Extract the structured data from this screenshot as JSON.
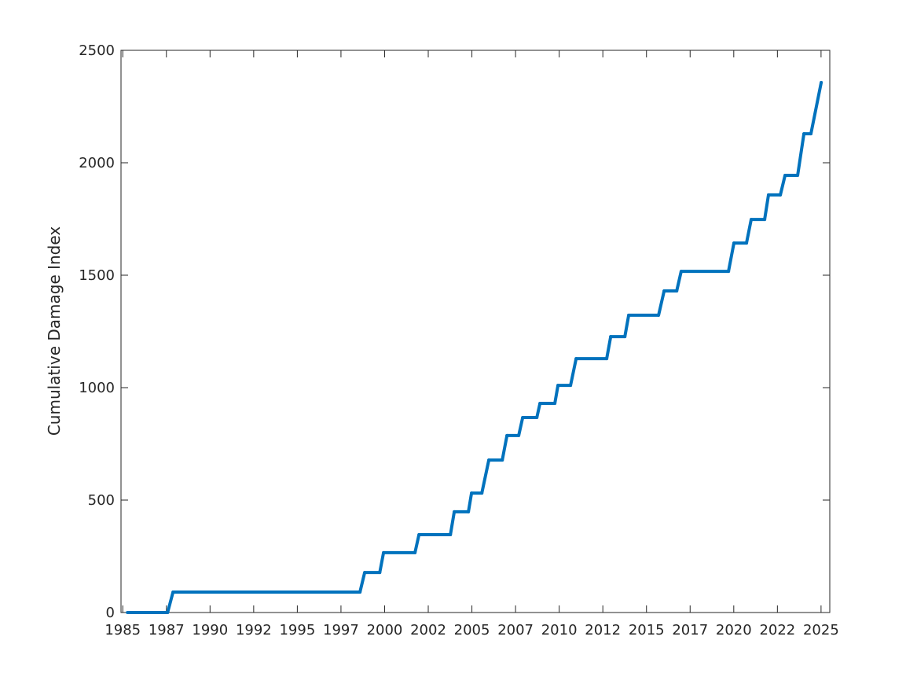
{
  "chart_data": {
    "type": "line",
    "title": "",
    "xlabel": "",
    "ylabel": "Cumulative Damage Index",
    "xlim": [
      1984.9,
      2025.5
    ],
    "ylim": [
      0,
      2500
    ],
    "grid": false,
    "line_color": "#0072BD",
    "x_ticks": [
      1985,
      1987.5,
      1990,
      1992.5,
      1995,
      1997.5,
      2000,
      2002.5,
      2005,
      2007.5,
      2010,
      2012.5,
      2015,
      2017.5,
      2020,
      2022.5,
      2025
    ],
    "x_tick_labels": [
      "1985",
      "1987",
      "1990",
      "1992",
      "1995",
      "1997",
      "2000",
      "2002",
      "2005",
      "2007",
      "2010",
      "2012",
      "2015",
      "2017",
      "2020",
      "2022",
      "2025"
    ],
    "y_ticks": [
      0,
      500,
      1000,
      1500,
      2000,
      2500
    ],
    "y_tick_labels": [
      "0",
      "500",
      "1000",
      "1500",
      "2000",
      "2500"
    ],
    "series": [
      {
        "x": [
          1985.27,
          1987.57,
          1987.88,
          1998.59,
          1998.86,
          1999.72,
          1999.94,
          2001.74,
          2001.97,
          2003.77,
          2003.99,
          2004.8,
          2004.98,
          2005.57,
          2005.97,
          2006.74,
          2007.01,
          2007.68,
          2007.91,
          2008.72,
          2008.9,
          2009.75,
          2009.93,
          2010.65,
          2010.97,
          2012.72,
          2012.95,
          2013.76,
          2013.98,
          2015.69,
          2016.01,
          2016.73,
          2016.99,
          2019.7,
          2020.01,
          2020.73,
          2021.0,
          2021.77,
          2021.99,
          2022.67,
          2022.94,
          2023.66,
          2024.02,
          2024.42,
          2025.01
        ],
        "y": [
          0,
          0,
          91,
          91,
          178,
          178,
          266,
          266,
          346,
          346,
          448,
          448,
          531,
          531,
          678,
          678,
          787,
          787,
          867,
          867,
          930,
          930,
          1010,
          1010,
          1129,
          1129,
          1227,
          1227,
          1322,
          1322,
          1430,
          1430,
          1517,
          1517,
          1643,
          1643,
          1748,
          1748,
          1857,
          1857,
          1944,
          1944,
          2129,
          2129,
          2357
        ]
      }
    ]
  }
}
